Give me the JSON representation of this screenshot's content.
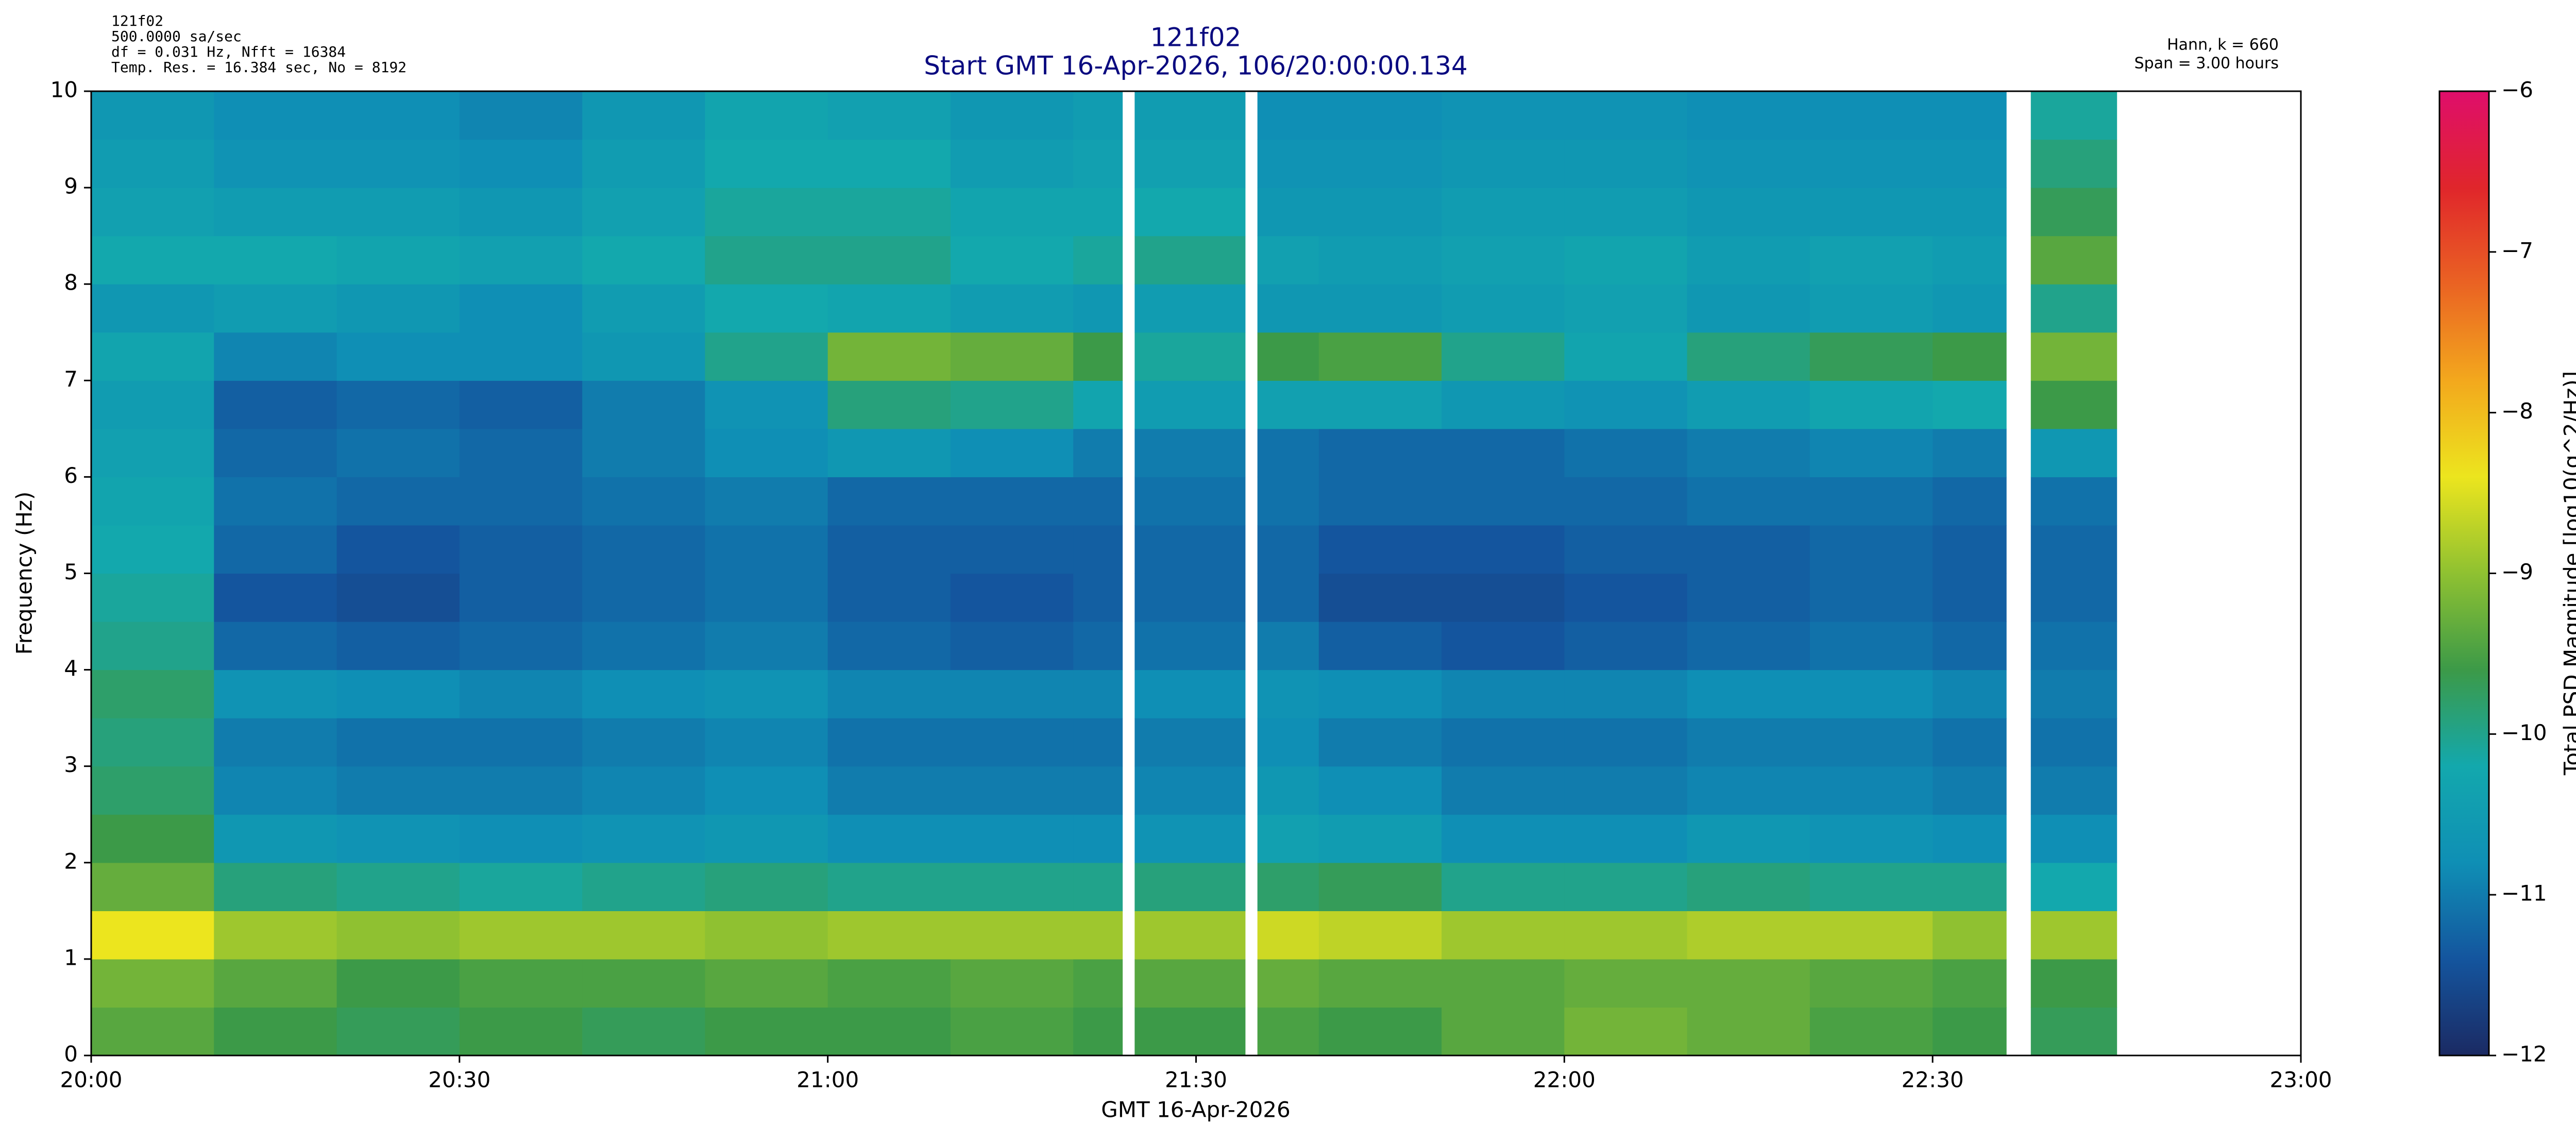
{
  "chart_data": {
    "type": "heatmap",
    "title": "121f02",
    "subtitle": "Start GMT 16-Apr-2026, 106/20:00:00.134",
    "annotations_left": [
      "121f02",
      "500.0000 sa/sec",
      "df = 0.031 Hz,  Nfft = 16384",
      "Temp. Res. = 16.384 sec, No = 8192"
    ],
    "annotations_right": [
      "Hann, k = 660",
      "Span = 3.00 hours"
    ],
    "xlabel": "GMT 16-Apr-2026",
    "ylabel": "Frequency (Hz)",
    "colorbar_label": "Total PSD Magnitude [log10(g^2/Hz)]",
    "xlim": [
      0,
      180
    ],
    "xticks": [
      {
        "value": 0,
        "label": "20:00"
      },
      {
        "value": 30,
        "label": "20:30"
      },
      {
        "value": 60,
        "label": "21:00"
      },
      {
        "value": 90,
        "label": "21:30"
      },
      {
        "value": 120,
        "label": "22:00"
      },
      {
        "value": 150,
        "label": "22:30"
      },
      {
        "value": 180,
        "label": "23:00"
      }
    ],
    "ylim": [
      0,
      10
    ],
    "yticks": [
      0,
      1,
      2,
      3,
      4,
      5,
      6,
      7,
      8,
      9,
      10
    ],
    "clim": [
      -12,
      -6
    ],
    "cticks": [
      {
        "value": -12,
        "label": "−12"
      },
      {
        "value": -11,
        "label": "−11"
      },
      {
        "value": -10,
        "label": "−10"
      },
      {
        "value": -9,
        "label": "−9"
      },
      {
        "value": -8,
        "label": "−8"
      },
      {
        "value": -7,
        "label": "−7"
      },
      {
        "value": -6,
        "label": "−6"
      }
    ],
    "colormap": [
      "#1b2a63",
      "#14559e",
      "#0f8fb5",
      "#13a8ad",
      "#3c9a48",
      "#8fc131",
      "#ece51e",
      "#f3a81d",
      "#ea6323",
      "#e0262b",
      "#df0e6b"
    ],
    "x_edges": [
      0,
      10,
      20,
      30,
      40,
      50,
      60,
      70,
      80,
      84,
      85,
      94,
      95,
      100,
      110,
      120,
      130,
      140,
      150,
      156,
      158,
      165
    ],
    "y_edges": [
      0,
      0.5,
      1,
      1.5,
      2,
      2.5,
      3,
      3.5,
      4,
      4.5,
      5,
      5.5,
      6,
      6.5,
      7,
      7.5,
      8,
      8.5,
      9,
      9.5,
      10
    ],
    "z": [
      [
        -9.4,
        -9.6,
        -9.7,
        -9.6,
        -9.7,
        -9.6,
        -9.6,
        -9.5,
        -9.6,
        null,
        -9.6,
        null,
        -9.5,
        -9.6,
        -9.4,
        -9.2,
        -9.3,
        -9.5,
        -9.6,
        null,
        -9.7
      ],
      [
        -9.2,
        -9.4,
        -9.6,
        -9.5,
        -9.5,
        -9.4,
        -9.5,
        -9.4,
        -9.5,
        null,
        -9.4,
        null,
        -9.3,
        -9.4,
        -9.4,
        -9.3,
        -9.3,
        -9.4,
        -9.5,
        null,
        -9.6
      ],
      [
        -8.4,
        -8.9,
        -9.0,
        -8.9,
        -8.9,
        -9.0,
        -8.9,
        -8.9,
        -8.9,
        null,
        -8.9,
        null,
        -8.6,
        -8.7,
        -8.9,
        -8.9,
        -8.8,
        -8.8,
        -9.0,
        null,
        -8.9
      ],
      [
        -9.3,
        -9.9,
        -10.0,
        -10.1,
        -10.0,
        -9.9,
        -10.0,
        -10.0,
        -10.0,
        null,
        -9.9,
        null,
        -9.8,
        -9.7,
        -10.0,
        -10.0,
        -9.9,
        -10.0,
        -10.0,
        null,
        -10.2
      ],
      [
        -9.6,
        -10.6,
        -10.7,
        -10.8,
        -10.7,
        -10.6,
        -10.8,
        -10.8,
        -10.8,
        null,
        -10.7,
        null,
        -10.4,
        -10.5,
        -10.8,
        -10.8,
        -10.6,
        -10.7,
        -10.8,
        null,
        -10.8
      ],
      [
        -9.8,
        -10.9,
        -11.0,
        -11.0,
        -10.9,
        -10.8,
        -11.0,
        -11.0,
        -11.0,
        null,
        -10.9,
        null,
        -10.6,
        -10.8,
        -11.0,
        -11.0,
        -10.9,
        -10.9,
        -11.0,
        null,
        -11.0
      ],
      [
        -9.9,
        -11.0,
        -11.1,
        -11.1,
        -11.0,
        -10.9,
        -11.1,
        -11.1,
        -11.1,
        null,
        -11.0,
        null,
        -10.8,
        -11.0,
        -11.1,
        -11.1,
        -11.0,
        -11.0,
        -11.1,
        null,
        -11.1
      ],
      [
        -9.8,
        -10.7,
        -10.8,
        -10.9,
        -10.8,
        -10.7,
        -10.9,
        -10.9,
        -10.9,
        null,
        -10.8,
        null,
        -10.7,
        -10.8,
        -10.9,
        -10.9,
        -10.8,
        -10.8,
        -10.9,
        null,
        -11.0
      ],
      [
        -10.0,
        -11.2,
        -11.3,
        -11.2,
        -11.1,
        -11.0,
        -11.2,
        -11.3,
        -11.2,
        null,
        -11.1,
        null,
        -11.0,
        -11.3,
        -11.4,
        -11.3,
        -11.2,
        -11.1,
        -11.2,
        null,
        -11.1
      ],
      [
        -10.1,
        -11.4,
        -11.5,
        -11.3,
        -11.2,
        -11.1,
        -11.3,
        -11.4,
        -11.3,
        null,
        -11.2,
        null,
        -11.2,
        -11.5,
        -11.5,
        -11.4,
        -11.3,
        -11.2,
        -11.3,
        null,
        -11.2
      ],
      [
        -10.2,
        -11.2,
        -11.4,
        -11.3,
        -11.2,
        -11.1,
        -11.3,
        -11.3,
        -11.3,
        null,
        -11.2,
        null,
        -11.2,
        -11.4,
        -11.4,
        -11.3,
        -11.3,
        -11.2,
        -11.3,
        null,
        -11.2
      ],
      [
        -10.3,
        -11.1,
        -11.2,
        -11.2,
        -11.1,
        -11.0,
        -11.2,
        -11.2,
        -11.2,
        null,
        -11.1,
        null,
        -11.1,
        -11.2,
        -11.2,
        -11.2,
        -11.1,
        -11.1,
        -11.2,
        null,
        -11.1
      ],
      [
        -10.4,
        -11.2,
        -11.1,
        -11.2,
        -11.0,
        -10.8,
        -10.6,
        -10.8,
        -11.0,
        null,
        -11.0,
        null,
        -11.1,
        -11.2,
        -11.2,
        -11.1,
        -11.0,
        -10.9,
        -11.0,
        null,
        -10.6
      ],
      [
        -10.5,
        -11.3,
        -11.2,
        -11.3,
        -11.0,
        -10.7,
        -9.9,
        -10.0,
        -10.3,
        null,
        -10.5,
        null,
        -10.4,
        -10.4,
        -10.6,
        -10.7,
        -10.5,
        -10.3,
        -10.2,
        null,
        -9.6
      ],
      [
        -10.3,
        -10.9,
        -10.8,
        -10.8,
        -10.6,
        -10.0,
        -9.2,
        -9.3,
        -9.6,
        null,
        -10.1,
        null,
        -9.6,
        -9.5,
        -10.0,
        -10.3,
        -9.9,
        -9.7,
        -9.6,
        null,
        -9.2
      ],
      [
        -10.6,
        -10.5,
        -10.6,
        -10.8,
        -10.5,
        -10.2,
        -10.3,
        -10.5,
        -10.6,
        null,
        -10.5,
        null,
        -10.6,
        -10.6,
        -10.5,
        -10.4,
        -10.6,
        -10.5,
        -10.6,
        null,
        -10.0
      ],
      [
        -10.2,
        -10.2,
        -10.3,
        -10.4,
        -10.2,
        -10.0,
        -10.0,
        -10.2,
        -10.1,
        null,
        -10.0,
        null,
        -10.4,
        -10.5,
        -10.4,
        -10.3,
        -10.5,
        -10.4,
        -10.5,
        null,
        -9.4
      ],
      [
        -10.4,
        -10.5,
        -10.5,
        -10.6,
        -10.4,
        -10.1,
        -10.1,
        -10.3,
        -10.3,
        null,
        -10.2,
        null,
        -10.6,
        -10.6,
        -10.5,
        -10.5,
        -10.6,
        -10.6,
        -10.6,
        null,
        -9.7
      ],
      [
        -10.5,
        -10.7,
        -10.7,
        -10.8,
        -10.5,
        -10.2,
        -10.2,
        -10.5,
        -10.4,
        null,
        -10.4,
        null,
        -10.7,
        -10.7,
        -10.6,
        -10.6,
        -10.7,
        -10.7,
        -10.7,
        null,
        -9.9
      ],
      [
        -10.6,
        -10.8,
        -10.8,
        -10.9,
        -10.6,
        -10.3,
        -10.4,
        -10.6,
        -10.5,
        null,
        -10.5,
        null,
        -10.8,
        -10.8,
        -10.7,
        -10.7,
        -10.8,
        -10.8,
        -10.8,
        null,
        -10.1
      ]
    ]
  }
}
